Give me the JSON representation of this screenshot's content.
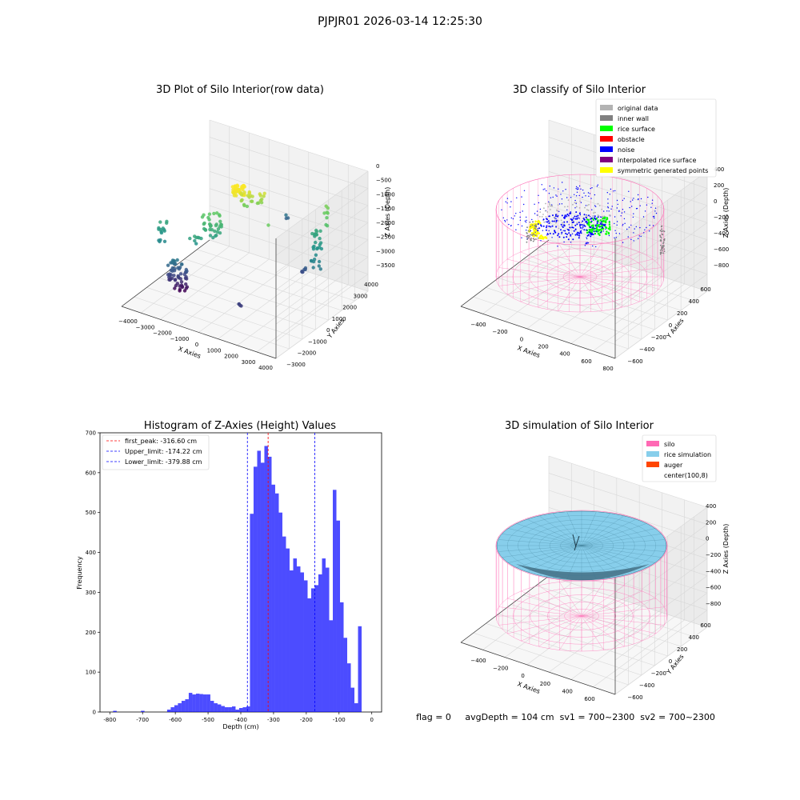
{
  "figure": {
    "title": "PJPJR01 2026-03-14 12:25:30",
    "status_line": "flag = 0     avgDepth = 104 cm  sv1 = 700~2300  sv2 = 700~2300"
  },
  "chart_data": [
    {
      "type": "scatter",
      "projection": "3d",
      "title": "3D Plot of Silo Interior(row data)",
      "xlabel": "X Axies",
      "ylabel": "Y Axies",
      "zlabel": "Z Axies (Depth)",
      "x_ticks": [
        "−4000",
        "−3000",
        "−2000",
        "−1000",
        "0",
        "1000",
        "2000",
        "3000",
        "4000"
      ],
      "y_ticks": [
        "−3000",
        "−2000",
        "−1000",
        "0",
        "1000",
        "2000",
        "3000",
        "4000"
      ],
      "z_ticks": [
        "0",
        "−500",
        "−1000",
        "−1500",
        "−2000",
        "−2500",
        "−3000",
        "−3500"
      ],
      "colormap": "viridis",
      "grid": true
    },
    {
      "type": "scatter",
      "projection": "3d",
      "title": "3D classify of Silo Interior",
      "xlabel": "X Axies",
      "ylabel": "Y Axies",
      "zlabel": "Z Axies (Depth)",
      "x_ticks": [
        "−400",
        "−200",
        "0",
        "200",
        "400",
        "600",
        "800"
      ],
      "y_ticks": [
        "−600",
        "−400",
        "−200",
        "0",
        "200",
        "400",
        "600"
      ],
      "z_ticks": [
        "400",
        "200",
        "0",
        "−200",
        "−400",
        "−600",
        "−800"
      ],
      "legend_position": "top-right",
      "legend": [
        {
          "label": "original data",
          "color": "#b3b3b3"
        },
        {
          "label": "inner wall",
          "color": "#808080"
        },
        {
          "label": "rice surface",
          "color": "#00ff00"
        },
        {
          "label": "obstacle",
          "color": "#ff0000"
        },
        {
          "label": "noise",
          "color": "#0000ff"
        },
        {
          "label": "interpolated rice surface",
          "color": "#800080"
        },
        {
          "label": "symmetric generated points",
          "color": "#ffff00"
        }
      ],
      "grid": true
    },
    {
      "type": "bar",
      "title": "Histogram of Z-Axies (Height) Values",
      "xlabel": "Depth (cm)",
      "ylabel": "Frequency",
      "xlim": [
        -830,
        30
      ],
      "ylim": [
        0,
        700
      ],
      "x_ticks": [
        -800,
        -700,
        -600,
        -500,
        -400,
        -300,
        -200,
        -100,
        0
      ],
      "y_ticks": [
        0,
        100,
        200,
        300,
        400,
        500,
        600,
        700
      ],
      "bar_color": "#0000ff",
      "bin_width": 11,
      "bins": [
        {
          "x": -790,
          "count": 3
        },
        {
          "x": -705,
          "count": 3
        },
        {
          "x": -625,
          "count": 6
        },
        {
          "x": -614,
          "count": 12
        },
        {
          "x": -603,
          "count": 17
        },
        {
          "x": -592,
          "count": 22
        },
        {
          "x": -581,
          "count": 28
        },
        {
          "x": -570,
          "count": 32
        },
        {
          "x": -559,
          "count": 48
        },
        {
          "x": -548,
          "count": 44
        },
        {
          "x": -537,
          "count": 46
        },
        {
          "x": -526,
          "count": 45
        },
        {
          "x": -515,
          "count": 44
        },
        {
          "x": -504,
          "count": 44
        },
        {
          "x": -493,
          "count": 28
        },
        {
          "x": -482,
          "count": 22
        },
        {
          "x": -471,
          "count": 19
        },
        {
          "x": -460,
          "count": 15
        },
        {
          "x": -449,
          "count": 12
        },
        {
          "x": -438,
          "count": 12
        },
        {
          "x": -427,
          "count": 14
        },
        {
          "x": -416,
          "count": 6
        },
        {
          "x": -405,
          "count": 10
        },
        {
          "x": -394,
          "count": 12
        },
        {
          "x": -383,
          "count": 14
        },
        {
          "x": -372,
          "count": 497
        },
        {
          "x": -361,
          "count": 615
        },
        {
          "x": -350,
          "count": 655
        },
        {
          "x": -339,
          "count": 625
        },
        {
          "x": -328,
          "count": 667
        },
        {
          "x": -317,
          "count": 640
        },
        {
          "x": -306,
          "count": 570
        },
        {
          "x": -295,
          "count": 548
        },
        {
          "x": -284,
          "count": 500
        },
        {
          "x": -273,
          "count": 440
        },
        {
          "x": -262,
          "count": 410
        },
        {
          "x": -251,
          "count": 355
        },
        {
          "x": -240,
          "count": 385
        },
        {
          "x": -229,
          "count": 365
        },
        {
          "x": -218,
          "count": 350
        },
        {
          "x": -207,
          "count": 330
        },
        {
          "x": -196,
          "count": 285
        },
        {
          "x": -185,
          "count": 310
        },
        {
          "x": -174,
          "count": 318
        },
        {
          "x": -163,
          "count": 345
        },
        {
          "x": -152,
          "count": 385
        },
        {
          "x": -141,
          "count": 362
        },
        {
          "x": -130,
          "count": 230
        },
        {
          "x": -119,
          "count": 557
        },
        {
          "x": -108,
          "count": 480
        },
        {
          "x": -97,
          "count": 275
        },
        {
          "x": -86,
          "count": 186
        },
        {
          "x": -75,
          "count": 122
        },
        {
          "x": -64,
          "count": 61
        },
        {
          "x": -53,
          "count": 22
        },
        {
          "x": -42,
          "count": 215
        }
      ],
      "vlines": [
        {
          "label": "first_peak: -316.60 cm",
          "x": -316.6,
          "color": "#ff0000"
        },
        {
          "label": "Upper_limit: -174.22 cm",
          "x": -174.22,
          "color": "#0000ff"
        },
        {
          "label": "Lower_limit: -379.88 cm",
          "x": -379.88,
          "color": "#0000ff"
        }
      ],
      "legend_position": "top-left"
    },
    {
      "type": "surface",
      "projection": "3d",
      "title": "3D simulation of Silo Interior",
      "xlabel": "X Axies",
      "ylabel": "Y Axies",
      "zlabel": "Z Axies (Depth)",
      "x_ticks": [
        "−400",
        "−200",
        "0",
        "200",
        "400",
        "600"
      ],
      "y_ticks": [
        "−600",
        "−400",
        "−200",
        "0",
        "200",
        "400",
        "600"
      ],
      "z_ticks": [
        "400",
        "200",
        "0",
        "−200",
        "−400",
        "−600",
        "−800"
      ],
      "legend_position": "top-right",
      "legend": [
        {
          "label": "silo",
          "color": "#ff69b4"
        },
        {
          "label": "rice simulation",
          "color": "#87ceeb"
        },
        {
          "label": "auger",
          "color": "#ff4500"
        },
        {
          "label": "center(100,8)",
          "color": "#ffffff"
        }
      ],
      "grid": true
    }
  ]
}
